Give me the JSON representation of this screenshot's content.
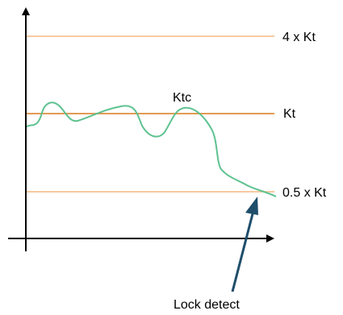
{
  "labels": {
    "upper_threshold": "4 x Kt",
    "nominal_threshold": "Kt",
    "lower_threshold": "0.5 x Kt",
    "signal": "Ktc",
    "lock_detect": "Lock detect"
  },
  "colors": {
    "upper_line": "#f8c9a0",
    "nominal_line": "#e29a54",
    "lower_line": "#f8c9a0",
    "signal_curve": "#5ec290",
    "axes": "#000000",
    "lock_arrow": "#1f4e6b"
  }
}
